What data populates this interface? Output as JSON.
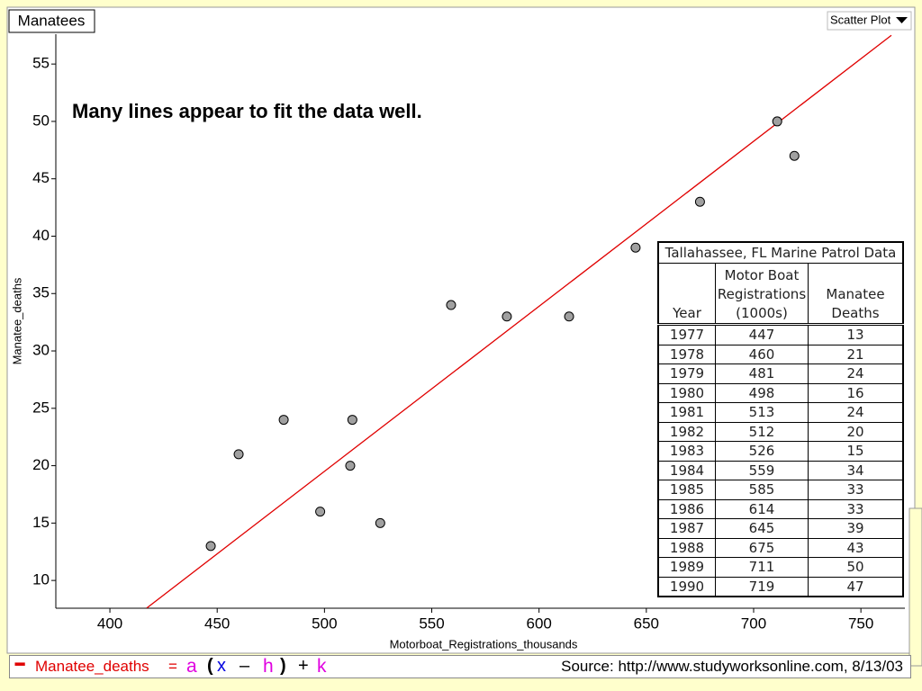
{
  "window_title": "Manatees",
  "view_menu": "Scatter Plot",
  "chart_data": {
    "type": "scatter",
    "annotation": "Many lines appear to fit the data well.",
    "x_label": "Motorboat_Registrations_thousands",
    "y_label": "Manatee_deaths",
    "points": {
      "color": "#a0a0a0",
      "x": [
        447,
        460,
        481,
        498,
        513,
        512,
        526,
        559,
        585,
        614,
        645,
        675,
        711,
        719
      ],
      "y": [
        13,
        21,
        24,
        16,
        24,
        20,
        15,
        34,
        33,
        33,
        39,
        43,
        50,
        47
      ]
    },
    "fit_line": {
      "color": "#e00000",
      "x": [
        417.2,
        764.2
      ],
      "y": [
        7.6,
        57.5
      ]
    },
    "xlim": [
      374.8,
      770.5
    ],
    "ylim": [
      7.58,
      57.6
    ],
    "xticks": [
      400,
      450,
      500,
      550,
      600,
      650,
      700,
      750
    ],
    "yticks": [
      10,
      15,
      20,
      25,
      30,
      35,
      40,
      45,
      50,
      55
    ]
  },
  "table": {
    "title": "Tallahassee, FL Marine Patrol Data",
    "headers": [
      [
        "Year"
      ],
      [
        "Motor Boat",
        "Registrations",
        "(1000s)"
      ],
      [
        "Manatee",
        "Deaths"
      ]
    ],
    "rows": [
      [
        1977,
        447,
        13
      ],
      [
        1978,
        460,
        21
      ],
      [
        1979,
        481,
        24
      ],
      [
        1980,
        498,
        16
      ],
      [
        1981,
        513,
        24
      ],
      [
        1982,
        512,
        20
      ],
      [
        1983,
        526,
        15
      ],
      [
        1984,
        559,
        34
      ],
      [
        1985,
        585,
        33
      ],
      [
        1986,
        614,
        33
      ],
      [
        1987,
        645,
        39
      ],
      [
        1988,
        675,
        43
      ],
      [
        1989,
        711,
        50
      ],
      [
        1990,
        719,
        47
      ]
    ]
  },
  "formula": {
    "variable": "Manatee_deaths",
    "equals": "=",
    "a": "a",
    "open": "(",
    "x": "x",
    "minus": "–",
    "h": "h",
    "close": ")",
    "plus": "+",
    "k": "k"
  },
  "source": "Source: http://www.studyworksonline.com, 8/13/03"
}
